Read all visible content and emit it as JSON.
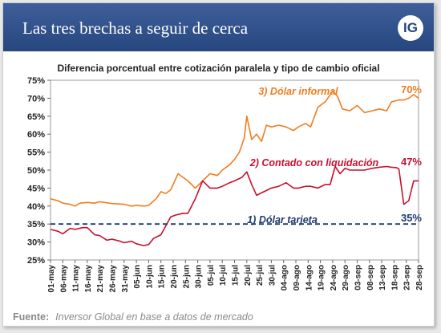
{
  "header": {
    "title": "Las tres brechas a seguir de cerca",
    "logo_text": "IG",
    "brand_color": "#2e4e88"
  },
  "footer": {
    "label": "Fuente:",
    "source": "Inversor Global en base a datos de mercado"
  },
  "chart_data": {
    "type": "line",
    "title": "Diferencia porcentual entre cotización paralela y tipo de cambio oficial",
    "xlabel": "",
    "ylabel": "",
    "ylim": [
      25,
      75
    ],
    "yticks": [
      25,
      30,
      35,
      40,
      45,
      50,
      55,
      60,
      65,
      70,
      75
    ],
    "ytick_labels": [
      "25%",
      "30%",
      "35%",
      "40%",
      "45%",
      "50%",
      "55%",
      "60%",
      "65%",
      "70%",
      "75%"
    ],
    "xtick_labels": [
      "01-may",
      "06-may",
      "11-may",
      "16-may",
      "21-may",
      "26-may",
      "31-may",
      "05-jun",
      "10-jun",
      "15-jun",
      "20-jun",
      "25-jun",
      "30-jun",
      "05-jul",
      "10-jul",
      "15-jul",
      "20-jul",
      "25-jul",
      "30-jul",
      "04-ago",
      "09-ago",
      "14-ago",
      "19-ago",
      "24-ago",
      "29-ago",
      "03-sep",
      "08-sep",
      "13-sep",
      "18-sep",
      "23-sep",
      "28-sep"
    ],
    "grid": false,
    "series": [
      {
        "name": "3) Dólar informal",
        "color": "#f07d1f",
        "end_label": "70%",
        "x": [
          "01-may",
          "04-may",
          "06-may",
          "09-may",
          "11-may",
          "13-may",
          "16-may",
          "19-may",
          "21-may",
          "26-may",
          "31-may",
          "03-jun",
          "05-jun",
          "08-jun",
          "10-jun",
          "13-jun",
          "15-jun",
          "17-jun",
          "19-jun",
          "22-jun",
          "24-jun",
          "26-jun",
          "29-jun",
          "02-jul",
          "05-jul",
          "08-jul",
          "10-jul",
          "13-jul",
          "15-jul",
          "17-jul",
          "19-jul",
          "20-jul",
          "22-jul",
          "24-jul",
          "26-jul",
          "28-jul",
          "30-jul",
          "02-ago",
          "05-ago",
          "08-ago",
          "10-ago",
          "13-ago",
          "15-ago",
          "18-ago",
          "21-ago",
          "24-ago",
          "26-ago",
          "28-ago",
          "31-ago",
          "03-sep",
          "06-sep",
          "09-sep",
          "12-sep",
          "15-sep",
          "17-sep",
          "20-sep",
          "22-sep",
          "24-sep",
          "26-sep",
          "28-sep"
        ],
        "values": [
          42.0,
          41.5,
          40.8,
          40.5,
          40.0,
          40.8,
          41.0,
          40.8,
          41.2,
          40.7,
          40.5,
          40.0,
          40.2,
          40.0,
          40.2,
          42.0,
          44.0,
          43.5,
          44.5,
          49.0,
          48.0,
          47.0,
          45.0,
          47.0,
          49.0,
          48.5,
          50.0,
          51.5,
          53.0,
          55.0,
          59.0,
          65.0,
          58.5,
          60.0,
          58.0,
          62.5,
          62.0,
          62.5,
          62.0,
          61.0,
          62.0,
          63.0,
          62.0,
          67.5,
          69.0,
          72.0,
          70.5,
          67.0,
          66.5,
          68.0,
          66.0,
          66.5,
          67.0,
          66.5,
          69.0,
          69.5,
          69.5,
          70.0,
          71.0,
          70.0
        ]
      },
      {
        "name": "2) Contado con liquidación",
        "color": "#c8102e",
        "end_label": "47%",
        "x": [
          "01-may",
          "04-may",
          "06-may",
          "09-may",
          "11-may",
          "14-may",
          "16-may",
          "19-may",
          "21-may",
          "24-may",
          "26-may",
          "29-may",
          "31-may",
          "03-jun",
          "05-jun",
          "08-jun",
          "10-jun",
          "12-jun",
          "15-jun",
          "17-jun",
          "19-jun",
          "21-jun",
          "24-jun",
          "26-jun",
          "29-jun",
          "02-jul",
          "05-jul",
          "08-jul",
          "10-jul",
          "13-jul",
          "15-jul",
          "18-jul",
          "20-jul",
          "22-jul",
          "24-jul",
          "27-jul",
          "30-jul",
          "02-ago",
          "05-ago",
          "08-ago",
          "10-ago",
          "13-ago",
          "15-ago",
          "18-ago",
          "21-ago",
          "23-ago",
          "25-ago",
          "27-ago",
          "29-ago",
          "31-ago",
          "03-sep",
          "06-sep",
          "09-sep",
          "12-sep",
          "15-sep",
          "17-sep",
          "19-sep",
          "20-sep",
          "22-sep",
          "24-sep",
          "26-sep",
          "28-sep"
        ],
        "values": [
          33.5,
          33.0,
          32.3,
          33.8,
          33.5,
          34.0,
          34.0,
          32.0,
          31.8,
          30.5,
          30.8,
          30.3,
          29.8,
          30.2,
          29.5,
          29.0,
          29.3,
          31.0,
          32.0,
          34.5,
          37.0,
          37.5,
          38.0,
          38.0,
          42.0,
          47.0,
          45.0,
          45.0,
          45.5,
          46.5,
          47.0,
          48.0,
          49.5,
          46.0,
          43.0,
          44.0,
          45.0,
          45.5,
          46.5,
          45.0,
          45.0,
          45.5,
          45.5,
          45.0,
          46.0,
          46.0,
          51.0,
          49.0,
          50.5,
          50.0,
          50.0,
          50.0,
          50.5,
          50.8,
          51.0,
          50.8,
          50.7,
          50.3,
          40.5,
          41.5,
          47.0,
          47.0
        ]
      },
      {
        "name": "1) Dólar tarjeta",
        "color": "#1f3a6b",
        "end_label": "35%",
        "dashed": true,
        "x": [
          "01-may",
          "28-sep"
        ],
        "values": [
          35,
          35
        ]
      }
    ]
  }
}
